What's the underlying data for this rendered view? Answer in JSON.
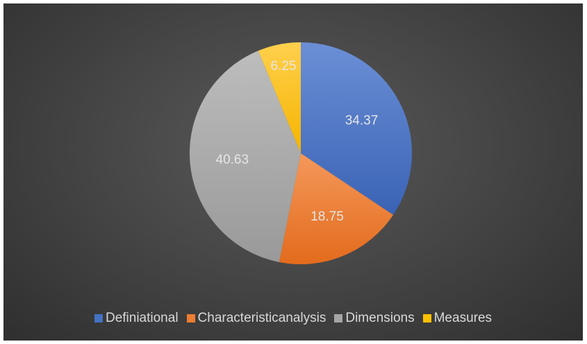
{
  "chart_data": {
    "type": "pie",
    "title": "",
    "categories": [
      "Definiational",
      "Characteristicanalysis",
      "Dimensions",
      "Measures"
    ],
    "values": [
      34.37,
      18.75,
      40.63,
      6.25
    ],
    "labels": [
      "34.37",
      "18.75",
      "40.63",
      "6.25"
    ],
    "colors": [
      "#4472c4",
      "#ed7d31",
      "#a5a5a5",
      "#ffc000"
    ],
    "start_angle_deg": 0,
    "direction": "clockwise",
    "legend_position": "bottom",
    "background": "#404040"
  },
  "legend": {
    "items": [
      {
        "label": "Definiational",
        "color": "#4472c4"
      },
      {
        "label": "Characteristicanalysis",
        "color": "#ed7d31"
      },
      {
        "label": "Dimensions",
        "color": "#a5a5a5"
      },
      {
        "label": "Measures",
        "color": "#ffc000"
      }
    ]
  }
}
